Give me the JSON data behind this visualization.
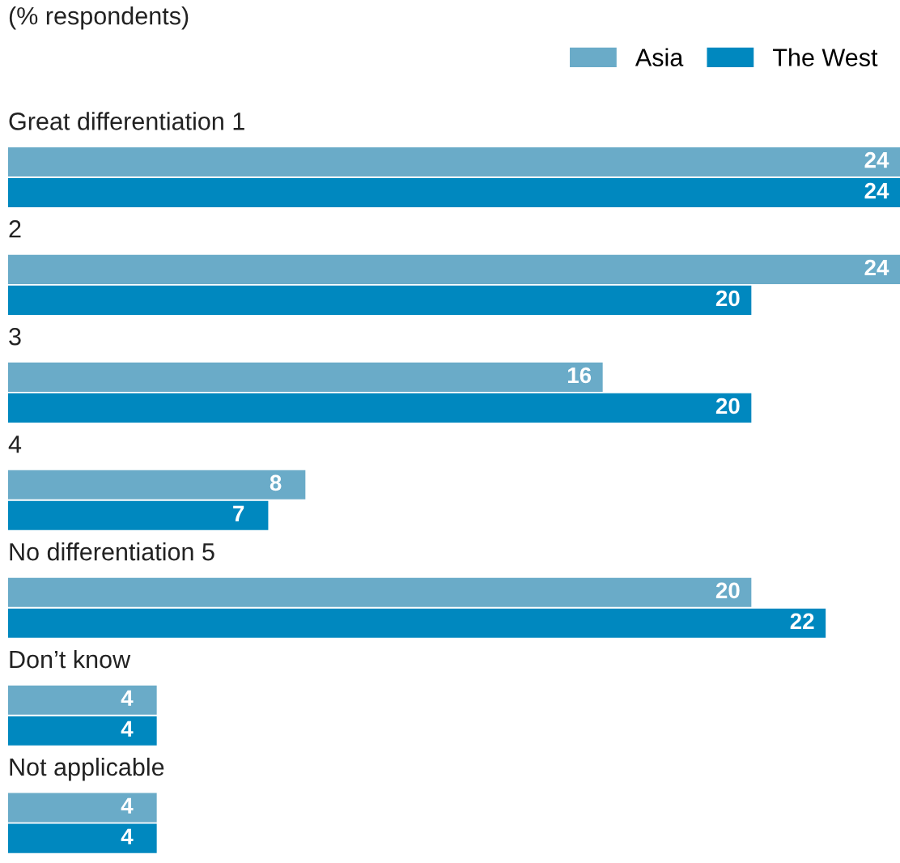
{
  "chart_data": {
    "type": "bar",
    "orientation": "horizontal",
    "subtitle": "(% respondents)",
    "categories": [
      "Great differentiation 1",
      "2",
      "3",
      "4",
      "No differentiation 5",
      "Don’t know",
      "Not applicable"
    ],
    "series": [
      {
        "name": "Asia",
        "color": "#6aabc8",
        "values": [
          24,
          24,
          16,
          8,
          20,
          4,
          4
        ]
      },
      {
        "name": "The West",
        "color": "#0088bf",
        "values": [
          24,
          20,
          20,
          7,
          22,
          4,
          4
        ]
      }
    ],
    "data_labels": true,
    "legend": "top right"
  }
}
